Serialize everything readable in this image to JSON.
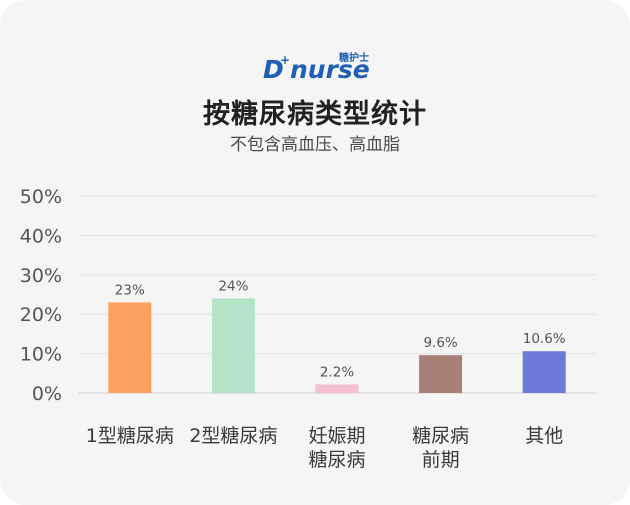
{
  "logo": {
    "text": "D+nurse",
    "tagline": "糖护士",
    "color": "#1f5fb4"
  },
  "header": {
    "title": "按糖尿病类型统计",
    "subtitle": "不包含高血压、高血脂"
  },
  "chart_data": {
    "type": "bar",
    "title": "按糖尿病类型统计",
    "subtitle": "不包含高血压、高血脂",
    "categories": [
      [
        "1型糖尿病"
      ],
      [
        "2型糖尿病"
      ],
      [
        "妊娠期",
        "糖尿病"
      ],
      [
        "糖尿病",
        "前期"
      ],
      [
        "其他"
      ]
    ],
    "values": [
      23,
      24,
      2.2,
      9.6,
      10.6
    ],
    "value_labels": [
      "23%",
      "24%",
      "2.2%",
      "9.6%",
      "10.6%"
    ],
    "colors": [
      "#fca160",
      "#b4e3c8",
      "#f4c0d2",
      "#a88076",
      "#6d7ad8"
    ],
    "yticks": [
      "0%",
      "10%",
      "20%",
      "30%",
      "40%",
      "50%"
    ],
    "ylim": [
      0,
      50
    ],
    "grid": true,
    "xlabel": "",
    "ylabel": ""
  }
}
